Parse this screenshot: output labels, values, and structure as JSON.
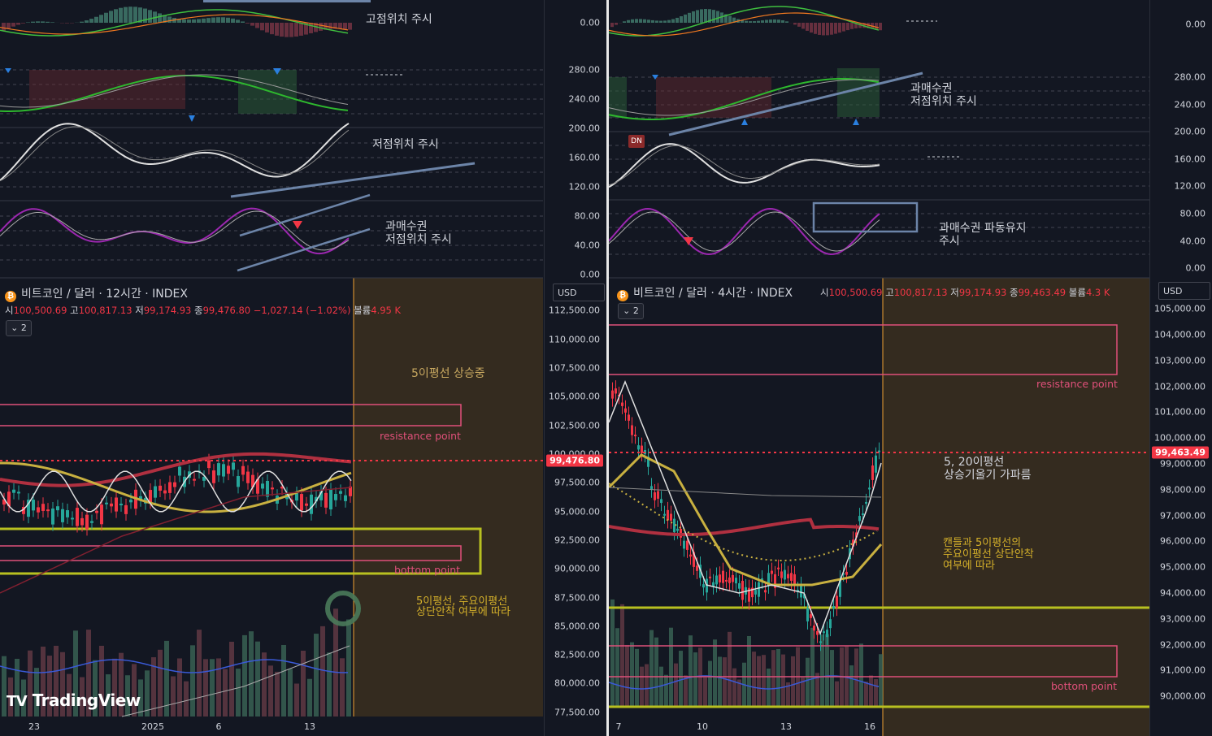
{
  "left": {
    "header": {
      "coin_icon": "bitcoin-icon",
      "title": "비트코인 / 달러 · 12시간 · INDEX"
    },
    "ohlc": {
      "open_label": "시",
      "open": "100,500.69",
      "high_label": "고",
      "high": "100,817.13",
      "low_label": "저",
      "low": "99,174.93",
      "close_label": "종",
      "close": "99,476.80",
      "change": "−1,027.14 (−1.02%)",
      "volume_label": "볼륨",
      "volume": "4.95 K"
    },
    "indicator_badge": "2",
    "currency": "USD",
    "last_price": "99,476.80",
    "price_ticks": [
      "112,500.00",
      "110,000.00",
      "107,500.00",
      "105,000.00",
      "102,500.00",
      "100,000.00",
      "97,500.00",
      "95,000.00",
      "92,500.00",
      "90,000.00",
      "87,500.00",
      "85,000.00",
      "82,500.00",
      "80,000.00",
      "77,500.00"
    ],
    "osc_ticks": [
      "0.00",
      "280.00",
      "240.00",
      "200.00",
      "160.00",
      "120.00",
      "80.00",
      "40.00",
      "0.00"
    ],
    "x_ticks": [
      "23",
      "2025",
      "6",
      "13"
    ],
    "annotations": {
      "high_pos": "고점위치 주시",
      "low_pos": "저점위치 주시",
      "overbought_1": "과매수권",
      "overbought_2": "저점위치 주시",
      "ma5_rising": "5이평선 상승중",
      "resistance": "resistance point",
      "bottom": "bottom point",
      "note_1": "5이평선, 주요이평선",
      "note_2": "상단안착 여부에 따라"
    },
    "logo": "TradingView"
  },
  "right": {
    "header": {
      "coin_icon": "bitcoin-icon",
      "title": "비트코인 / 달러 · 4시간 · INDEX"
    },
    "ohlc": {
      "open_label": "시",
      "open": "100,500.69",
      "high_label": "고",
      "high": "100,817.13",
      "low_label": "저",
      "low": "99,174.93",
      "close_label": "종",
      "close": "99,463.49",
      "volume_label": "볼륨",
      "volume": "4.3 K"
    },
    "indicator_badge": "2",
    "currency": "USD",
    "last_price": "99,463.49",
    "price_ticks": [
      "105,000.00",
      "104,000.00",
      "103,000.00",
      "102,000.00",
      "101,000.00",
      "100,000.00",
      "99,000.00",
      "98,000.00",
      "97,000.00",
      "96,000.00",
      "95,000.00",
      "94,000.00",
      "93,000.00",
      "92,000.00",
      "91,000.00",
      "90,000.00"
    ],
    "osc_ticks": [
      "0.00",
      "280.00",
      "240.00",
      "200.00",
      "160.00",
      "120.00",
      "80.00",
      "40.00",
      "0.00"
    ],
    "x_ticks": [
      "7",
      "10",
      "13",
      "16"
    ],
    "dn_label": "DN",
    "annotations": {
      "overbought_1": "과매수권",
      "overbought_2": "저점위치 주시",
      "wave_1": "과매수권 파동유지",
      "wave_2": "주시",
      "ma_1": "5, 20이평선",
      "ma_2": "상승기울기 가파름",
      "candle_1": "캔들과 5이평선의",
      "candle_2": "주요이평선 상단안착",
      "candle_3": "여부에 따라",
      "resistance": "resistance point",
      "bottom": "bottom point"
    }
  },
  "colors": {
    "bg": "#131722",
    "up": "#26a69a",
    "down": "#f23645",
    "orange": "#f0a030",
    "magenta": "#e0507a",
    "olive": "#b8c020",
    "yellow_ma": "#c8b040",
    "purple": "#9c27b0",
    "steel": "#6c84a8"
  }
}
